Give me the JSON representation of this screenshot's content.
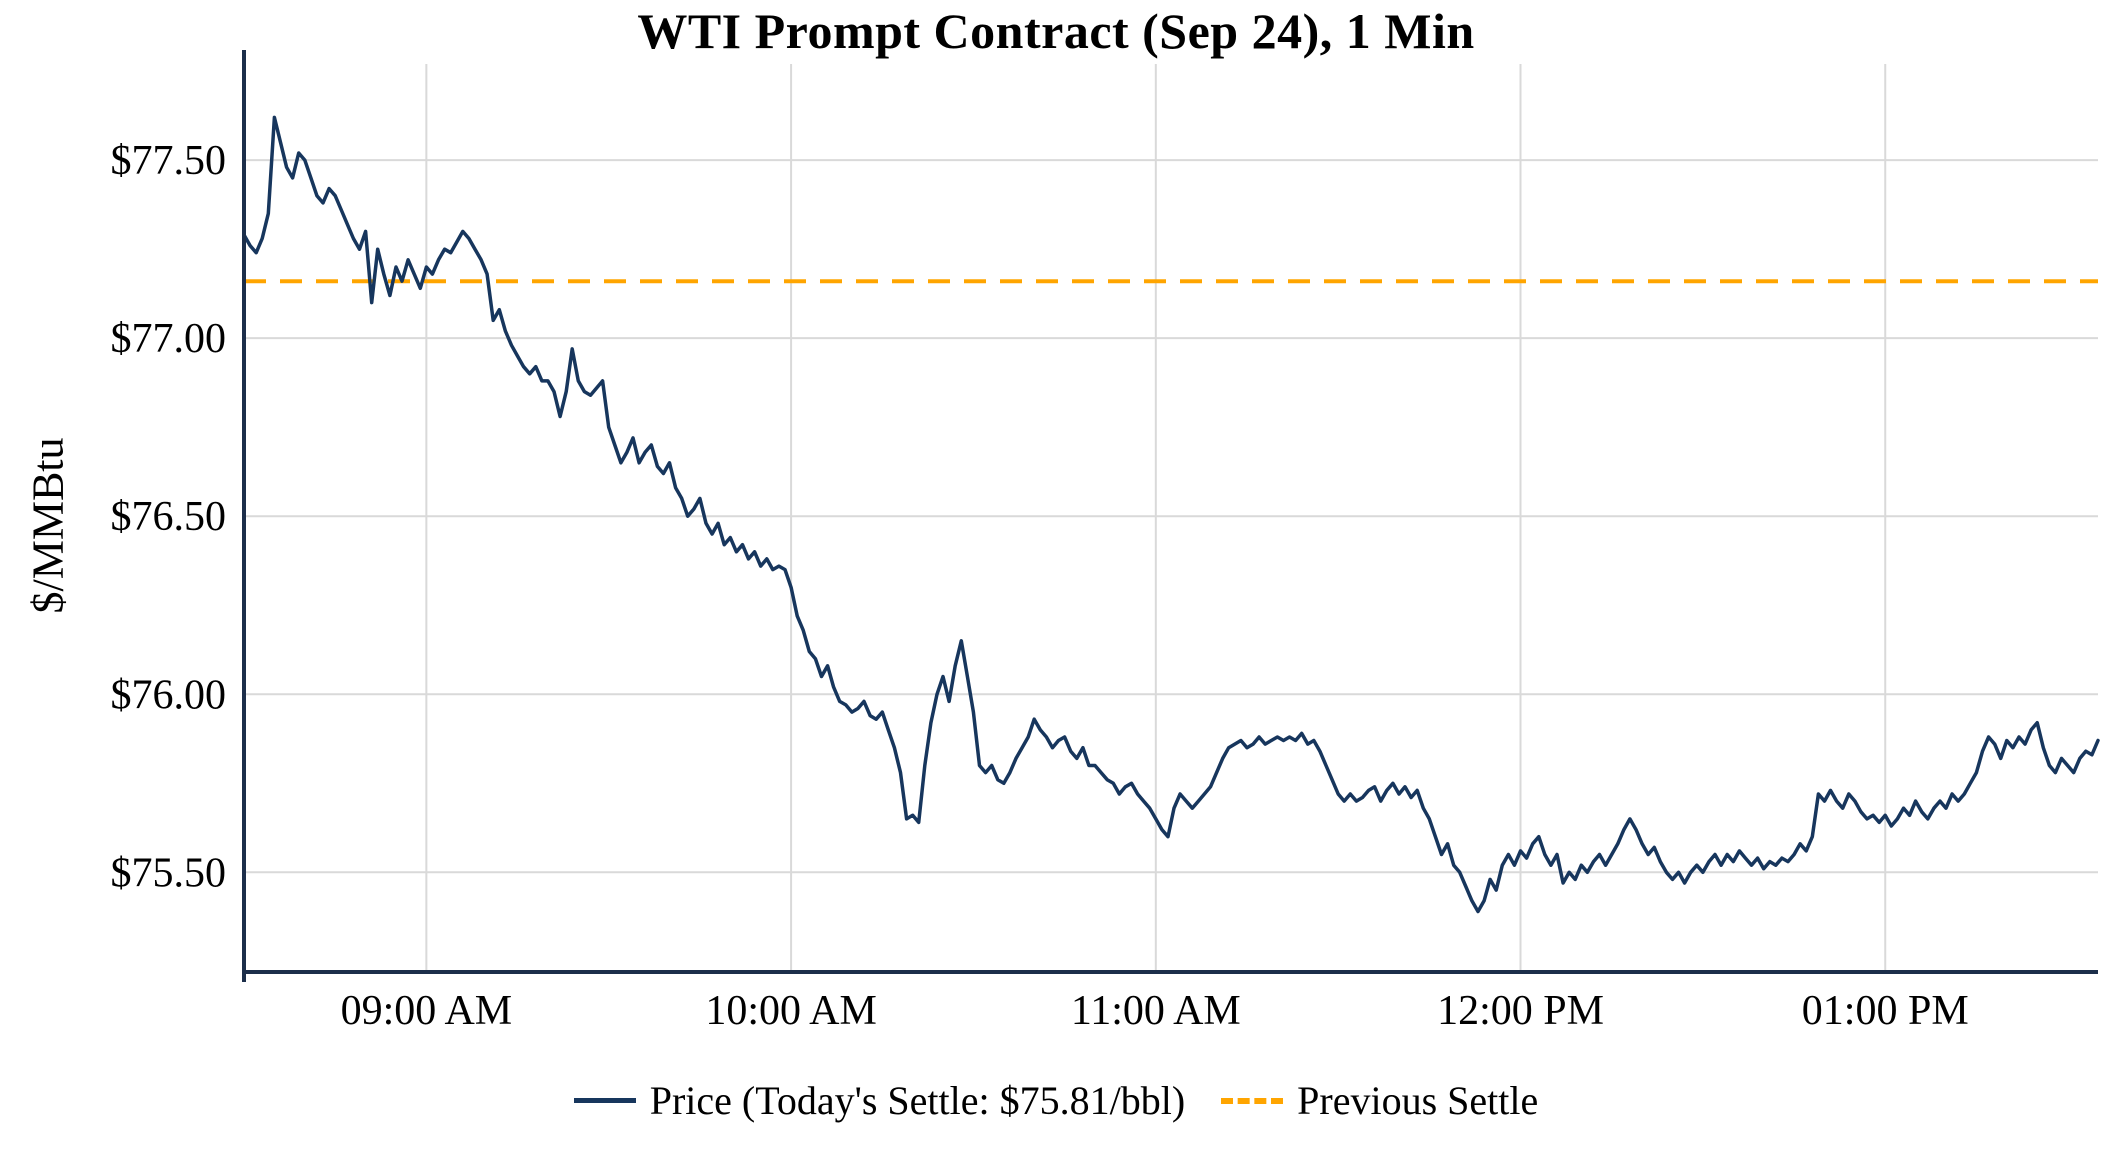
{
  "chart_data": {
    "type": "line",
    "title": "WTI Prompt Contract (Sep 24), 1 Min",
    "ylabel": "$/MMBtu",
    "xlabel": "",
    "grid": true,
    "legend_position": "bottom",
    "todays_settle": 75.81,
    "previous_settle": 77.16,
    "colors": {
      "price_line": "#17365d",
      "previous_settle_line": "#FFA500",
      "grid": "#d9d9d9",
      "axis": "#1c2e4a",
      "text": "#000000",
      "background": "#ffffff"
    },
    "x_axis": {
      "range_minutes": [
        0,
        305
      ],
      "ticks": [
        {
          "minute": 30,
          "label": "09:00 AM"
        },
        {
          "minute": 90,
          "label": "10:00 AM"
        },
        {
          "minute": 150,
          "label": "11:00 AM"
        },
        {
          "minute": 210,
          "label": "12:00 PM"
        },
        {
          "minute": 270,
          "label": "01:00 PM"
        }
      ]
    },
    "y_axis": {
      "range": [
        75.22,
        77.77
      ],
      "ticks": [
        {
          "value": 77.5,
          "label": "$77.50"
        },
        {
          "value": 77.0,
          "label": "$77.00"
        },
        {
          "value": 76.5,
          "label": "$76.50"
        },
        {
          "value": 76.0,
          "label": "$76.00"
        },
        {
          "value": 75.5,
          "label": "$75.50"
        }
      ]
    },
    "series": [
      {
        "name": "Price (Today's Settle: $75.81/bbl)",
        "type": "line",
        "style": "solid",
        "color": "#17365d",
        "start_minute": 0,
        "step_minutes": 1,
        "values": [
          77.29,
          77.26,
          77.24,
          77.28,
          77.35,
          77.62,
          77.55,
          77.48,
          77.45,
          77.52,
          77.5,
          77.45,
          77.4,
          77.38,
          77.42,
          77.4,
          77.36,
          77.32,
          77.28,
          77.25,
          77.3,
          77.1,
          77.25,
          77.18,
          77.12,
          77.2,
          77.16,
          77.22,
          77.18,
          77.14,
          77.2,
          77.18,
          77.22,
          77.25,
          77.24,
          77.27,
          77.3,
          77.28,
          77.25,
          77.22,
          77.18,
          77.05,
          77.08,
          77.02,
          76.98,
          76.95,
          76.92,
          76.9,
          76.92,
          76.88,
          76.88,
          76.85,
          76.78,
          76.85,
          76.97,
          76.88,
          76.85,
          76.84,
          76.86,
          76.88,
          76.75,
          76.7,
          76.65,
          76.68,
          76.72,
          76.65,
          76.68,
          76.7,
          76.64,
          76.62,
          76.65,
          76.58,
          76.55,
          76.5,
          76.52,
          76.55,
          76.48,
          76.45,
          76.48,
          76.42,
          76.44,
          76.4,
          76.42,
          76.38,
          76.4,
          76.36,
          76.38,
          76.35,
          76.36,
          76.35,
          76.3,
          76.22,
          76.18,
          76.12,
          76.1,
          76.05,
          76.08,
          76.02,
          75.98,
          75.97,
          75.95,
          75.96,
          75.98,
          75.94,
          75.93,
          75.95,
          75.9,
          75.85,
          75.78,
          75.65,
          75.66,
          75.64,
          75.8,
          75.92,
          76.0,
          76.05,
          75.98,
          76.08,
          76.15,
          76.05,
          75.95,
          75.8,
          75.78,
          75.8,
          75.76,
          75.75,
          75.78,
          75.82,
          75.85,
          75.88,
          75.93,
          75.9,
          75.88,
          75.85,
          75.87,
          75.88,
          75.84,
          75.82,
          75.85,
          75.8,
          75.8,
          75.78,
          75.76,
          75.75,
          75.72,
          75.74,
          75.75,
          75.72,
          75.7,
          75.68,
          75.65,
          75.62,
          75.6,
          75.68,
          75.72,
          75.7,
          75.68,
          75.7,
          75.72,
          75.74,
          75.78,
          75.82,
          75.85,
          75.86,
          75.87,
          75.85,
          75.86,
          75.88,
          75.86,
          75.87,
          75.88,
          75.87,
          75.88,
          75.87,
          75.89,
          75.86,
          75.87,
          75.84,
          75.8,
          75.76,
          75.72,
          75.7,
          75.72,
          75.7,
          75.71,
          75.73,
          75.74,
          75.7,
          75.73,
          75.75,
          75.72,
          75.74,
          75.71,
          75.73,
          75.68,
          75.65,
          75.6,
          75.55,
          75.58,
          75.52,
          75.5,
          75.46,
          75.42,
          75.39,
          75.42,
          75.48,
          75.45,
          75.52,
          75.55,
          75.52,
          75.56,
          75.54,
          75.58,
          75.6,
          75.55,
          75.52,
          75.55,
          75.47,
          75.5,
          75.48,
          75.52,
          75.5,
          75.53,
          75.55,
          75.52,
          75.55,
          75.58,
          75.62,
          75.65,
          75.62,
          75.58,
          75.55,
          75.57,
          75.53,
          75.5,
          75.48,
          75.5,
          75.47,
          75.5,
          75.52,
          75.5,
          75.53,
          75.55,
          75.52,
          75.55,
          75.53,
          75.56,
          75.54,
          75.52,
          75.54,
          75.51,
          75.53,
          75.52,
          75.54,
          75.53,
          75.55,
          75.58,
          75.56,
          75.6,
          75.72,
          75.7,
          75.73,
          75.7,
          75.68,
          75.72,
          75.7,
          75.67,
          75.65,
          75.66,
          75.64,
          75.66,
          75.63,
          75.65,
          75.68,
          75.66,
          75.7,
          75.67,
          75.65,
          75.68,
          75.7,
          75.68,
          75.72,
          75.7,
          75.72,
          75.75,
          75.78,
          75.84,
          75.88,
          75.86,
          75.82,
          75.87,
          75.85,
          75.88,
          75.86,
          75.9,
          75.92,
          75.85,
          75.8,
          75.78,
          75.82,
          75.8,
          75.78,
          75.82,
          75.84,
          75.83,
          75.87
        ]
      },
      {
        "name": "Previous Settle",
        "type": "hline",
        "style": "dashed",
        "color": "#FFA500",
        "value": 77.16
      }
    ]
  }
}
